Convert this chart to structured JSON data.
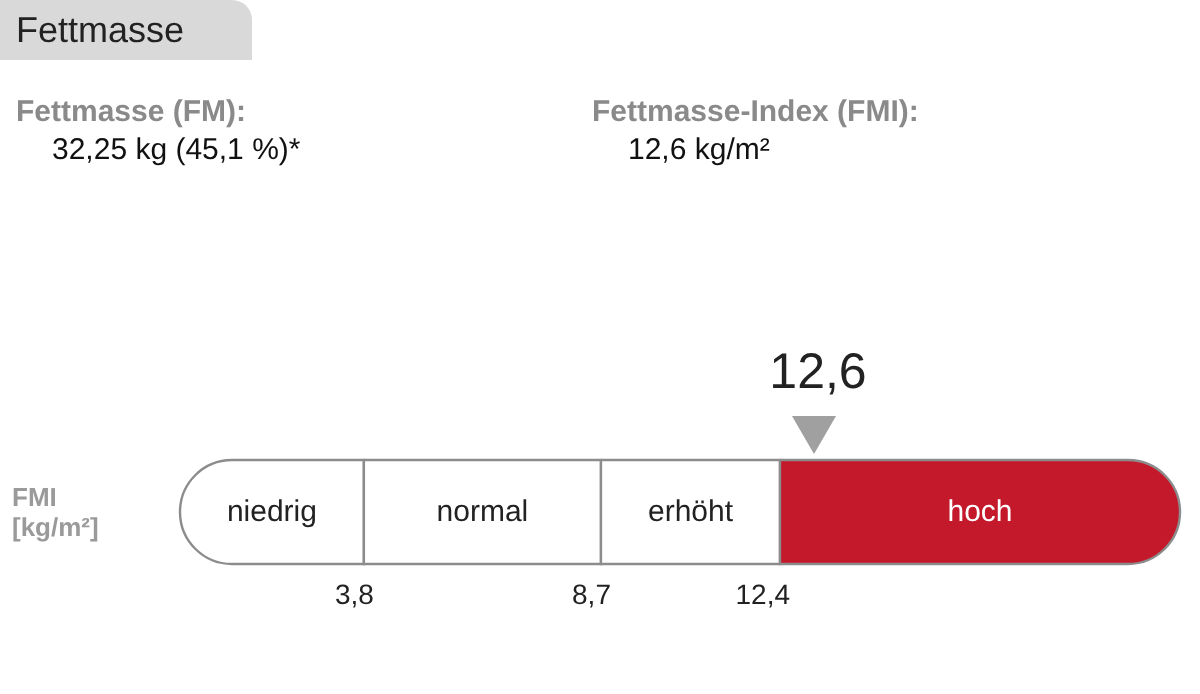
{
  "chart_data": {
    "type": "other",
    "title": "Fettmasse",
    "annotations": [
      "Fettmasse (FM):",
      "32,25 kg (45,1 %)*",
      "Fettmasse-Index (FMI):",
      "12,6 kg/m²",
      {
        "text": "12,6",
        "x": "hoch"
      }
    ],
    "ylabel": "FMI [kg/m²]",
    "categories": [
      "niedrig",
      "normal",
      "erhöht",
      "hoch"
    ],
    "values": [
      3.8,
      8.7,
      12.4,
      null
    ],
    "value_labels": [
      "3,8",
      "8,7",
      "12,4",
      null
    ],
    "colors": [
      "#ffffff",
      "#ffffff",
      "#ffffff",
      "#c4182b"
    ]
  }
}
